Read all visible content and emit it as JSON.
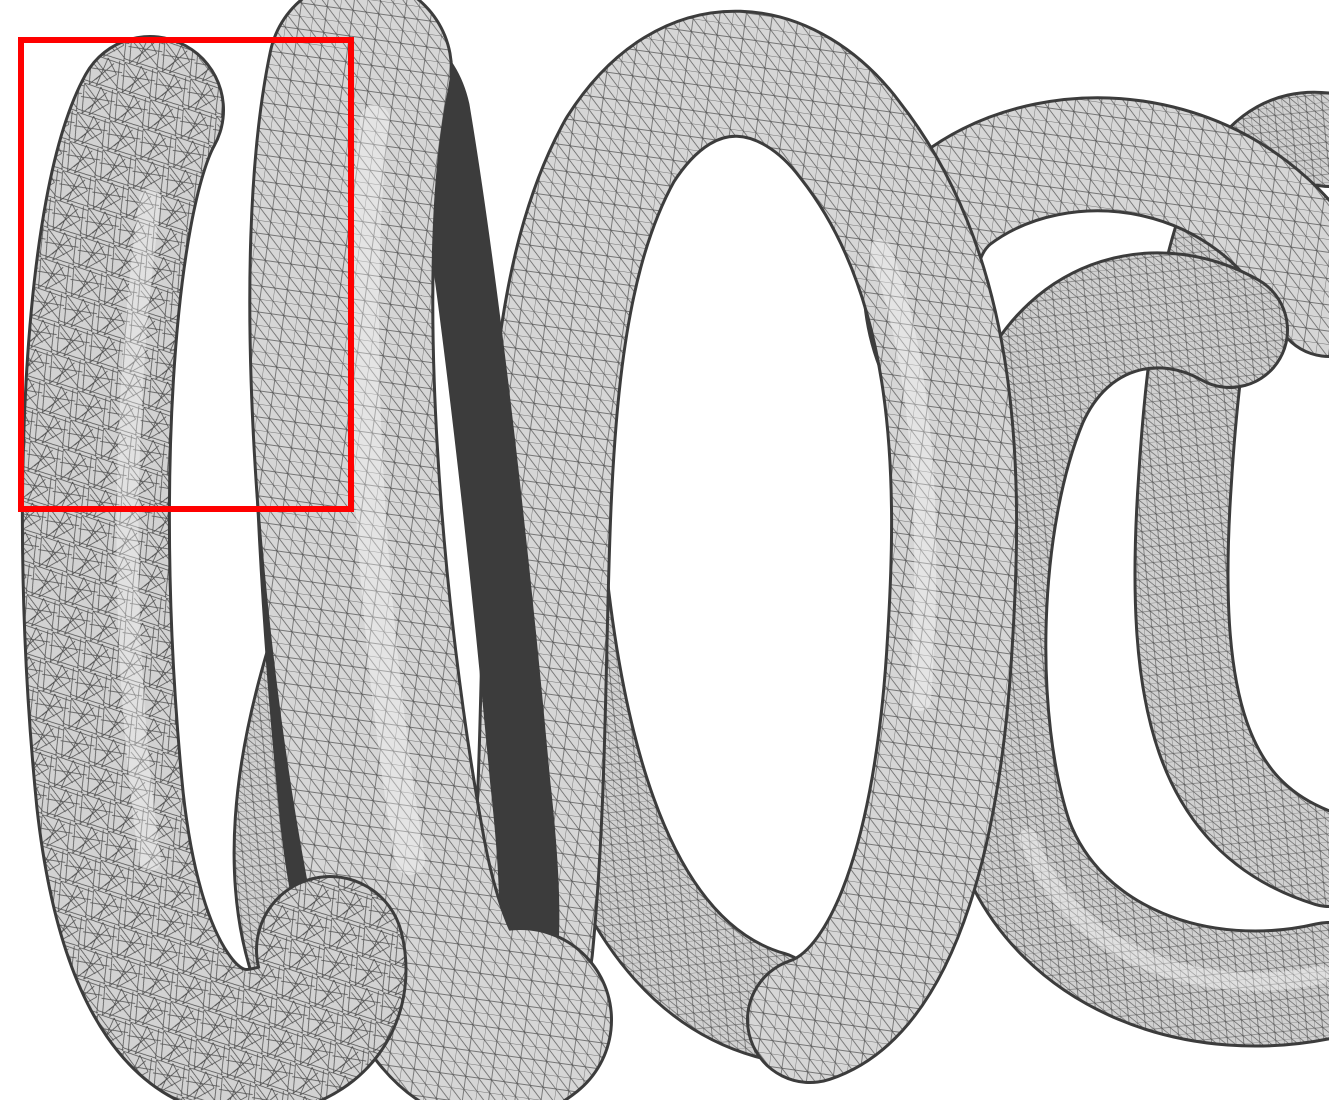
{
  "scene": {
    "subject": "coil-spring-mesh",
    "background_color": "#ffffff",
    "mesh_fill_color": "#d6d6d6",
    "mesh_edge_color": "#3c3c3c",
    "shadow_color": "#4a4a4a",
    "highlight_box": {
      "color": "#ff0000",
      "marks": "noisy-mesh-region"
    }
  }
}
